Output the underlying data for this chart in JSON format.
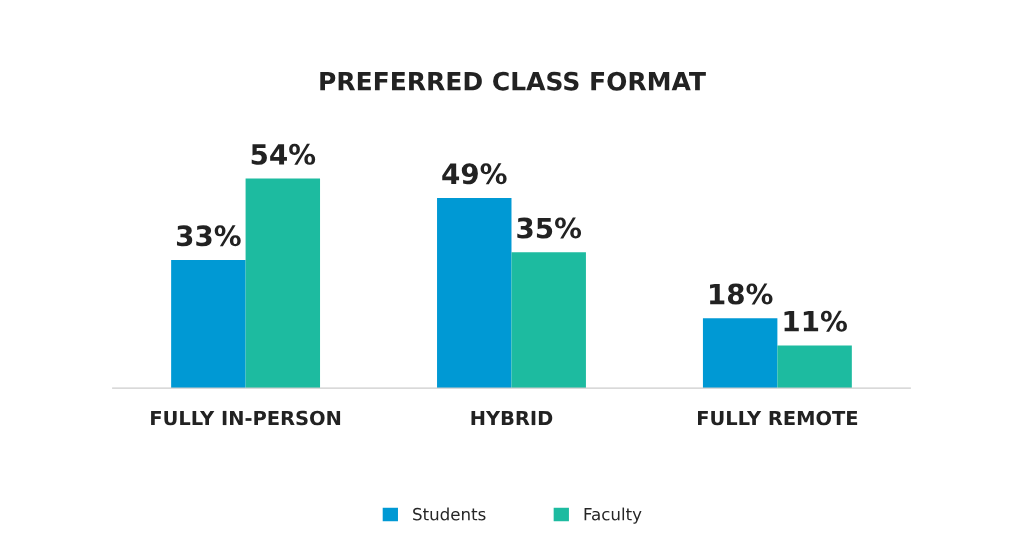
{
  "chart_data": {
    "type": "bar",
    "title": "PREFERRED CLASS FORMAT",
    "categories": [
      "FULLY IN-PERSON",
      "HYBRID",
      "FULLY REMOTE"
    ],
    "series": [
      {
        "name": "Students",
        "color": "#0099d4",
        "values": [
          33,
          49,
          18
        ],
        "value_labels": [
          "33%",
          "49%",
          "18%"
        ]
      },
      {
        "name": "Faculty",
        "color": "#1dbba0",
        "values": [
          54,
          35,
          11
        ],
        "value_labels": [
          "54%",
          "35%",
          "11%"
        ]
      }
    ],
    "legend": "bottom",
    "grid": false
  }
}
